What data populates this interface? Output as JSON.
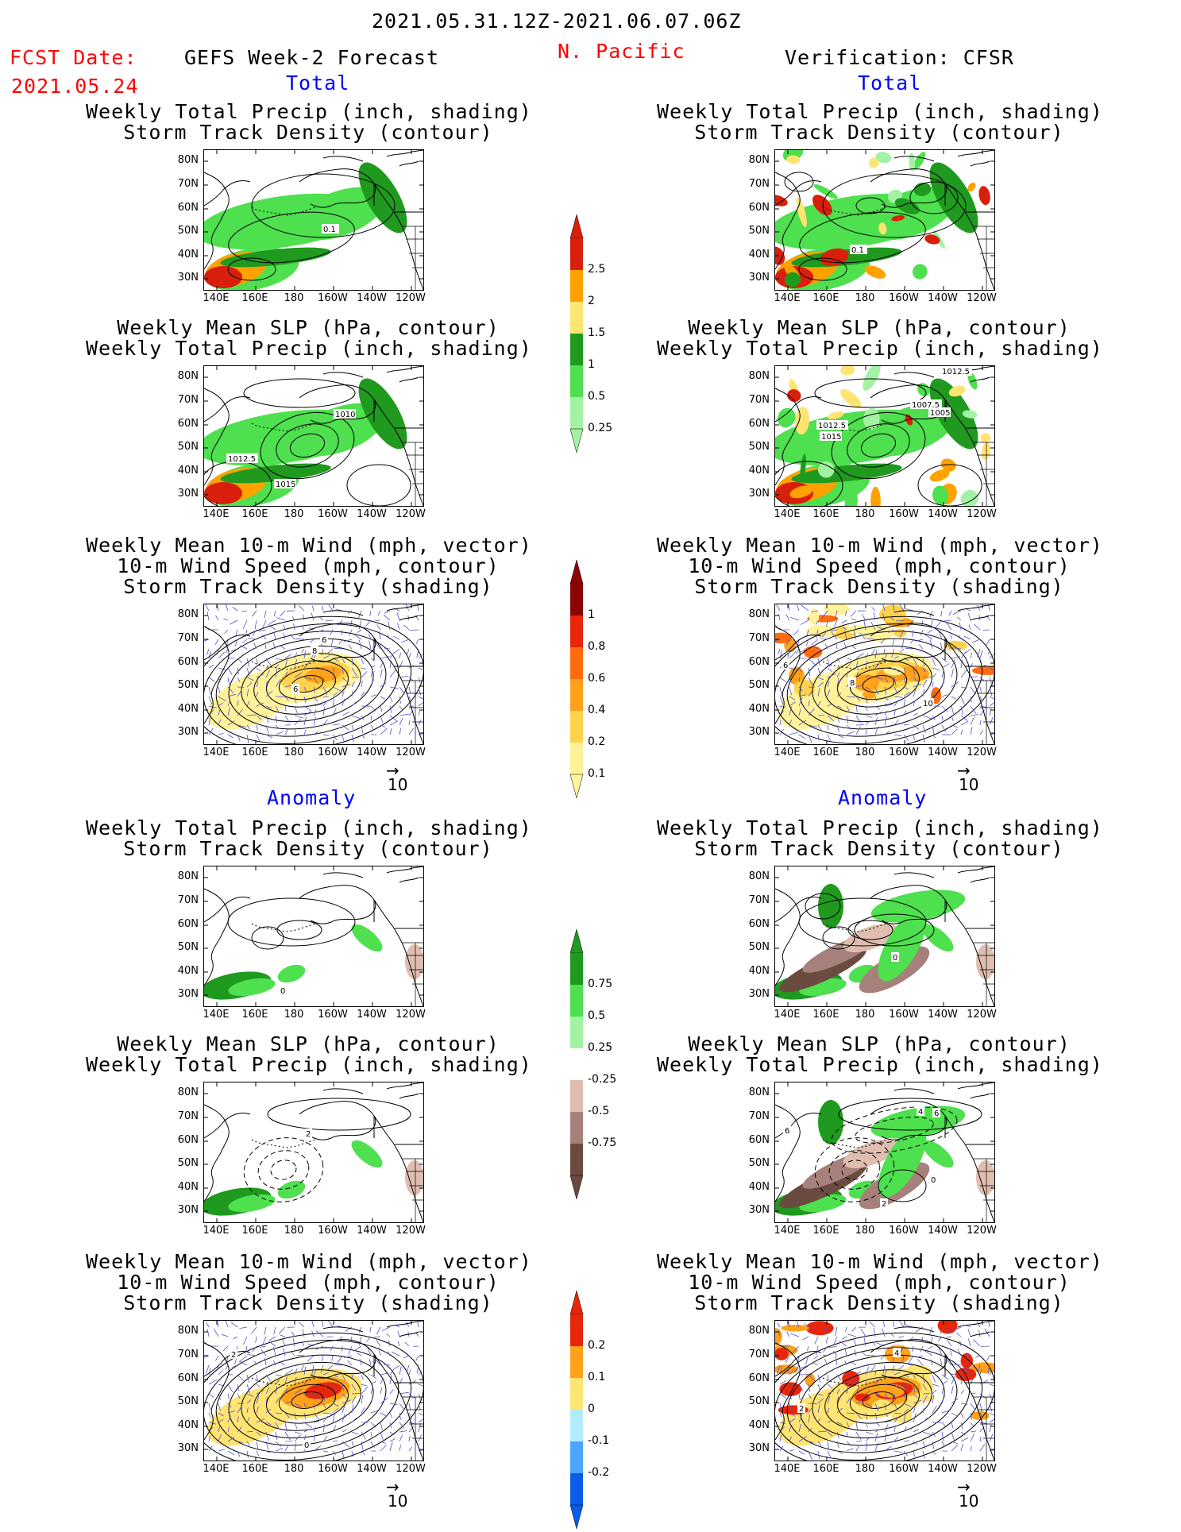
{
  "header": {
    "date_range": "2021.05.31.12Z-2021.06.07.06Z",
    "fcst_label": "FCST Date:",
    "fcst_date": "2021.05.24",
    "left_title": "GEFS Week-2 Forecast",
    "region": "N. Pacific",
    "right_title": "Verification: CFSR",
    "total_label": "Total",
    "anomaly_label": "Anomaly"
  },
  "panel_titles": {
    "precip_track": [
      "Weekly Total Precip (inch, shading)",
      "Storm Track Density (contour)"
    ],
    "slp_precip": [
      "Weekly Mean SLP (hPa, contour)",
      "Weekly Total Precip (inch, shading)"
    ],
    "wind_track": [
      "Weekly Mean 10-m Wind (mph, vector)",
      "10-m Wind Speed (mph, contour)",
      "Storm Track Density (shading)"
    ]
  },
  "axes": {
    "lat_labels": [
      "80N",
      "70N",
      "60N",
      "50N",
      "40N",
      "30N"
    ],
    "lon_labels": [
      "140E",
      "160E",
      "180",
      "160W",
      "140W",
      "120W"
    ]
  },
  "vector_ref": "10",
  "contour_labels": {
    "l_total_precip": [
      "0.1"
    ],
    "r_total_precip": [
      "0.1"
    ],
    "l_total_slp": [
      "1010",
      "1012.5",
      "1015"
    ],
    "r_total_slp": [
      "1012.5",
      "1007.5",
      "1005",
      "1012.5",
      "1015"
    ],
    "l_total_wind": [
      "6",
      "8",
      "6"
    ],
    "r_total_wind": [
      "6",
      "8",
      "10"
    ],
    "l_anom_precip": [
      "0"
    ],
    "r_anom_precip": [
      "0"
    ],
    "l_anom_slp": [
      "2"
    ],
    "r_anom_slp": [
      "4",
      "6",
      "6",
      "2",
      "0"
    ],
    "l_anom_wind": [
      "2",
      "0"
    ],
    "r_anom_wind": [
      "2",
      "4"
    ]
  },
  "colorbars": {
    "total_precip": {
      "labels": [
        "2.5",
        "2",
        "1.5",
        "1",
        "0.5",
        "0.25"
      ],
      "colors": [
        "#d81f0c",
        "#ffa200",
        "#ffe473",
        "#1f9a1f",
        "#4ee04e",
        "#a3f2a3"
      ]
    },
    "total_track": {
      "labels": [
        "1",
        "0.8",
        "0.6",
        "0.4",
        "0.2",
        "0.1"
      ],
      "colors": [
        "#8c0505",
        "#e8260b",
        "#ff6b0d",
        "#ffa11a",
        "#ffd24d",
        "#fff29b"
      ]
    },
    "anom_precip": {
      "labels": [
        "0.75",
        "0.5",
        "0.25",
        "-0.25",
        "-0.5",
        "-0.75"
      ],
      "colors": [
        "#1f9a1f",
        "#4ee04e",
        "#a3f2a3",
        "#ffffff",
        "#dfbdb0",
        "#a6807a",
        "#6b4a40"
      ]
    },
    "anom_track": {
      "labels": [
        "0.2",
        "0.1",
        "0",
        "-0.1",
        "-0.2"
      ],
      "colors": [
        "#e8260b",
        "#ffa11a",
        "#ffe473",
        "#b3ecff",
        "#4ca6ff",
        "#0b5ce8"
      ]
    }
  }
}
